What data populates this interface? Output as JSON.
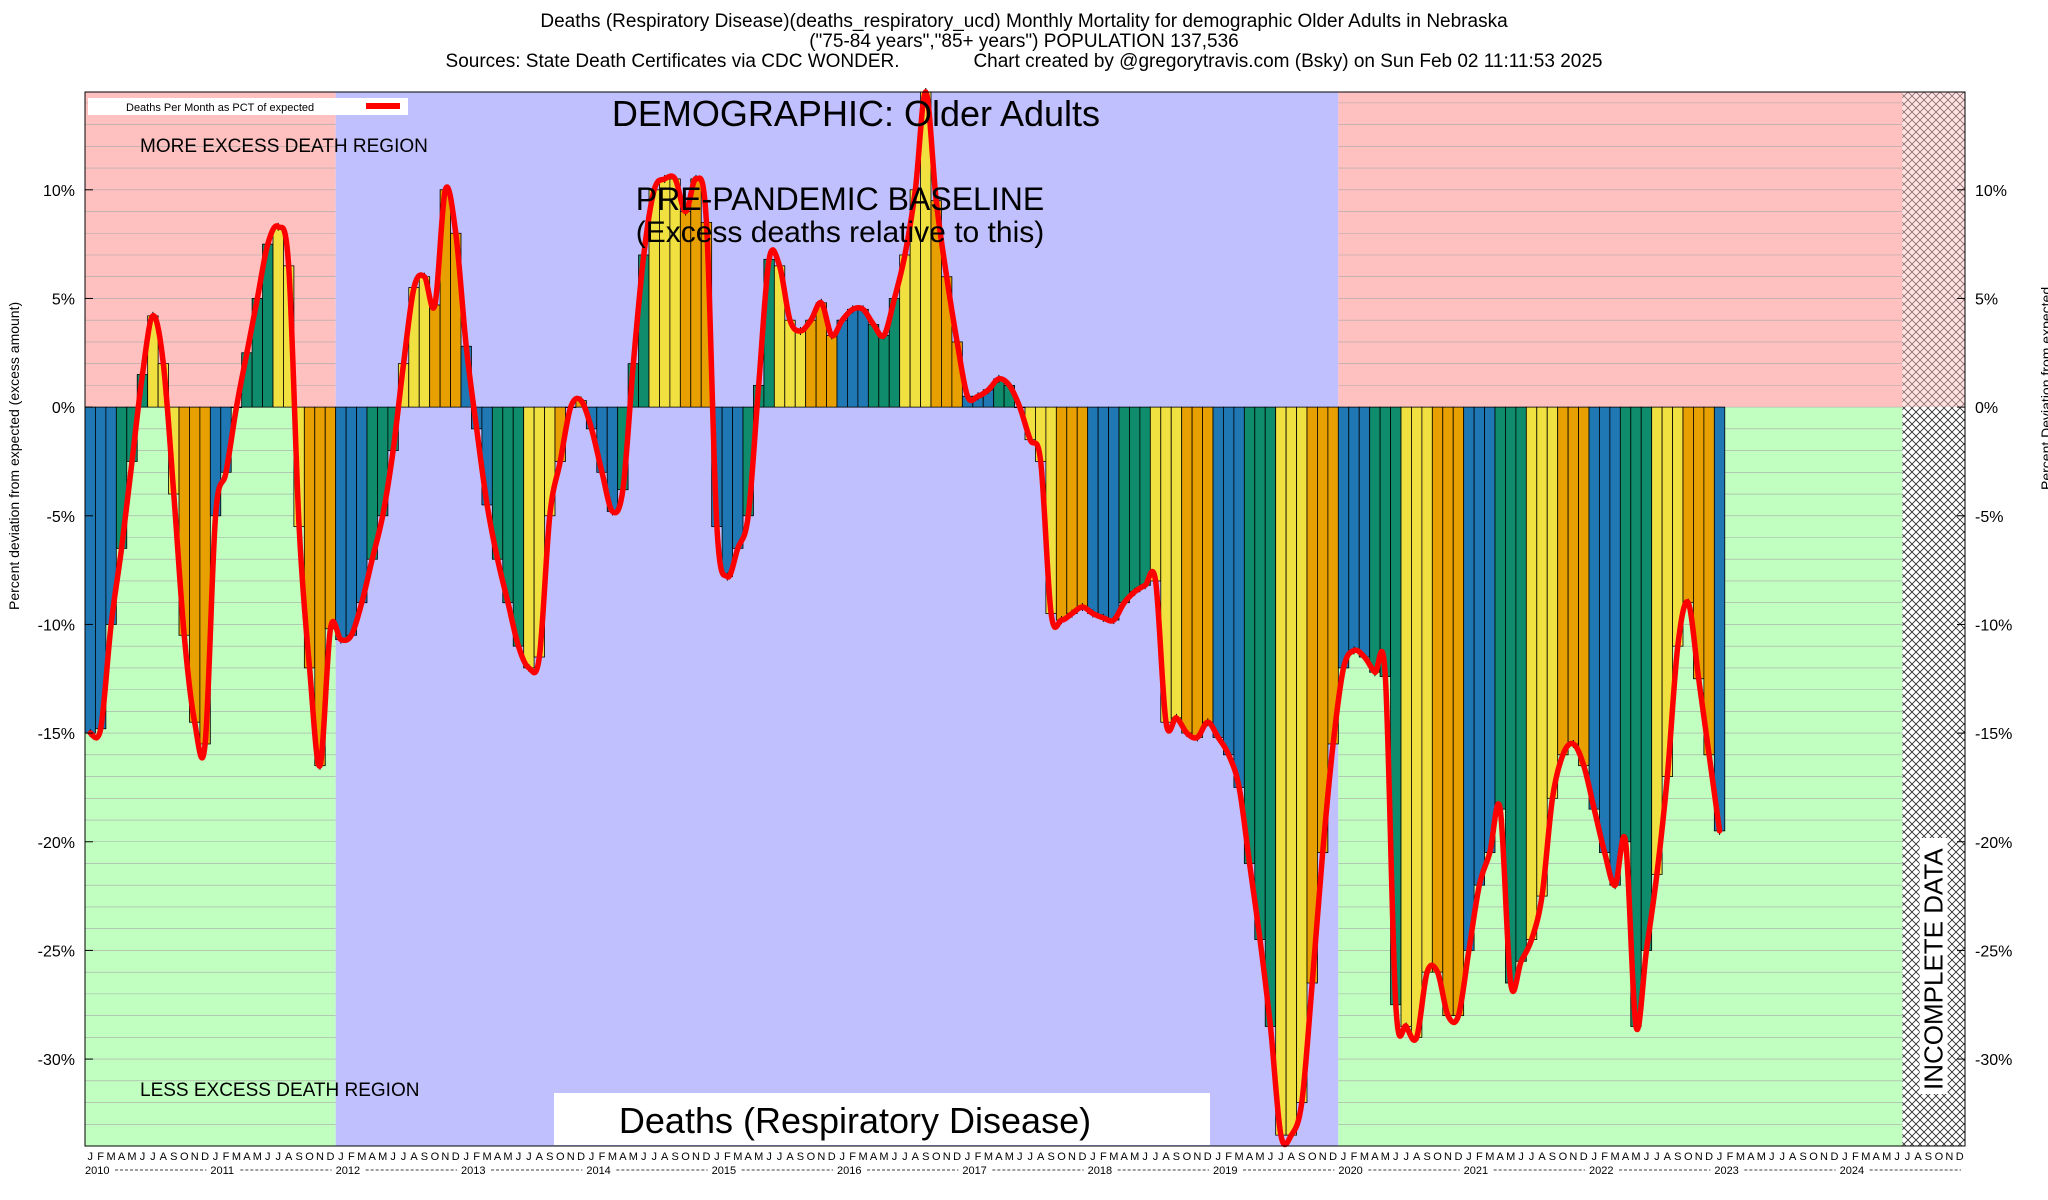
{
  "header": {
    "line1": "Deaths (Respiratory Disease)(deaths_respiratory_ucd) Monthly Mortality for demographic Older Adults in Nebraska",
    "line2": "(\"75-84 years\",\"85+ years\") POPULATION 137,536",
    "line3": "Sources: State Death Certificates via CDC WONDER.              Chart created by @gregorytravis.com (Bsky) on Sun Feb 02 11:11:53 2025"
  },
  "annotations": {
    "more_excess": "MORE EXCESS DEATH REGION",
    "less_excess": "LESS EXCESS DEATH REGION",
    "demographic": "DEMOGRAPHIC: Older Adults",
    "baseline_line1": "PRE-PANDEMIC BASELINE",
    "baseline_line2": "(Excess deaths relative to this)",
    "cause": "Deaths (Respiratory Disease)",
    "incomplete": "INCOMPLETE DATA"
  },
  "legend": {
    "label": "Deaths Per Month as PCT of expected"
  },
  "colors": {
    "more_region": "#ffc0c0",
    "less_region": "#c0ffc0",
    "baseline_region": "#c0c0ff",
    "line": "#ff0000",
    "bar_palette": [
      "#1f77b4",
      "#0f8c6c",
      "#f0e040",
      "#e8a000"
    ]
  },
  "chart_data": {
    "type": "bar",
    "ylabel_left": "Percent deviation from expected (excess amount)",
    "ylabel_right": "Percent Deviation from expected",
    "ylim": [
      -34,
      14.5
    ],
    "y_ticks": [
      "10%",
      "5%",
      "0%",
      "-5%",
      "-10%",
      "-15%",
      "-20%",
      "-25%",
      "-30%"
    ],
    "y_tick_values": [
      10,
      5,
      0,
      -5,
      -10,
      -15,
      -20,
      -25,
      -30
    ],
    "month_letters": [
      "J",
      "F",
      "M",
      "A",
      "M",
      "J",
      "J",
      "A",
      "S",
      "O",
      "N",
      "D"
    ],
    "years": [
      "2010",
      "2011",
      "2012",
      "2013",
      "2014",
      "2015",
      "2016",
      "2017",
      "2018",
      "2019",
      "2020",
      "2021",
      "2022",
      "2023",
      "2024"
    ],
    "baseline_years": [
      "2012",
      "2013",
      "2014",
      "2015",
      "2016",
      "2017",
      "2018",
      "2019"
    ],
    "incomplete_from_month_index": 174,
    "grid": true,
    "legend_position": "top-left",
    "series": [
      {
        "name": "Deaths Per Month as PCT of expected",
        "values": [
          -15,
          -14.8,
          -10,
          -6.5,
          -2.5,
          1.5,
          4.2,
          2,
          -4,
          -10.5,
          -14.5,
          -15.5,
          -5,
          -3,
          0,
          2.5,
          5,
          7.5,
          8.3,
          6.5,
          -5.5,
          -12,
          -16.5,
          -10.2,
          -10.7,
          -10.5,
          -9,
          -7,
          -5,
          -2,
          2,
          5.5,
          6,
          4.7,
          10,
          8,
          2.8,
          -1,
          -4.5,
          -7,
          -9,
          -11,
          -12,
          -11.5,
          -5,
          -2.5,
          0,
          0.3,
          -1,
          -3,
          -4.8,
          -3.8,
          2,
          7,
          10,
          10.5,
          10.5,
          9,
          10.5,
          8.5,
          -5.5,
          -7.8,
          -6.5,
          -5,
          1,
          6.8,
          6.5,
          4,
          3.5,
          4,
          4.8,
          3.3,
          4,
          4.5,
          4.5,
          3.8,
          3.3,
          5,
          7,
          10,
          14.5,
          9.5,
          6,
          3,
          0.5,
          0.5,
          0.8,
          1.3,
          1,
          0,
          -1.5,
          -2.5,
          -9.5,
          -9.8,
          -9.5,
          -9.2,
          -9.5,
          -9.7,
          -9.8,
          -9,
          -8.5,
          -8.2,
          -8,
          -14.5,
          -14.3,
          -15,
          -15.2,
          -14.5,
          -15.2,
          -16,
          -17.5,
          -21,
          -24.5,
          -28.5,
          -33.5,
          -33.5,
          -32,
          -26.5,
          -20.5,
          -15.5,
          -12,
          -11.2,
          -11.5,
          -12.2,
          -12.4,
          -27.5,
          -28.5,
          -29,
          -26,
          -26,
          -28,
          -28,
          -25,
          -22,
          -20.5,
          -18.5,
          -26.5,
          -25.5,
          -24.5,
          -22.5,
          -18,
          -16,
          -15.5,
          -16.5,
          -18.5,
          -20.5,
          -22,
          -20,
          -28.5,
          -25,
          -21.5,
          -17,
          -11,
          -9,
          -12.5,
          -16,
          -19.5
        ]
      }
    ]
  }
}
